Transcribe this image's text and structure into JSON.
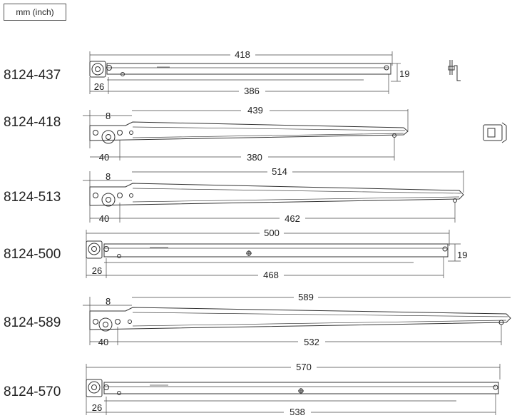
{
  "unit_label": "mm (inch)",
  "slides": [
    {
      "model": "8124-437",
      "length": "418",
      "span": "386",
      "offset": "26",
      "height": "19"
    },
    {
      "model": "8124-418",
      "length": "439",
      "span": "380",
      "offset": "40",
      "top": "8"
    },
    {
      "model": "8124-513",
      "length": "514",
      "span": "462",
      "offset": "40",
      "top": "8"
    },
    {
      "model": "8124-500",
      "length": "500",
      "span": "468",
      "offset": "26",
      "height": "19"
    },
    {
      "model": "8124-589",
      "length": "589",
      "span": "532",
      "offset": "40",
      "top": "8"
    },
    {
      "model": "8124-570",
      "length": "570",
      "span": "538",
      "offset": "26"
    }
  ]
}
